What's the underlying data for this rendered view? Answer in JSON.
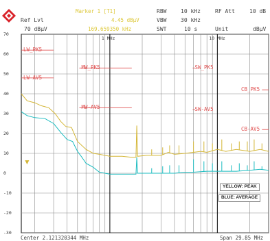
{
  "header": {
    "ref_lvl_label": "Ref Lvl",
    "ref_lvl_value": "70 dBµV",
    "marker_label": "Marker 1 [T1]",
    "marker_value": "4.45 dBµV",
    "marker_freq": "169.659350 kHz",
    "rbw_label": "RBW",
    "rbw_value": "10 kHz",
    "vbw_label": "VBW",
    "vbw_value": "30 kHz",
    "swt_label": "SWT",
    "swt_value": "10 s",
    "rf_att_label": "RF Att",
    "rf_att_value": "10 dB",
    "unit_label": "Unit",
    "unit_value": "dBµV"
  },
  "footer": {
    "center": "Center 2.121320344 MHz",
    "span": "Span 29.85 MHz"
  },
  "colors": {
    "peak_trace": "#d4b636",
    "average_trace": "#1dbcc0",
    "limit_line": "#e05252",
    "grid": "#8a8a8a"
  },
  "chart_data": {
    "type": "line",
    "x_scale": "log",
    "xlabel": "",
    "ylabel": "",
    "ylim": [
      -30,
      70
    ],
    "xlim_mhz": [
      0.15,
      30
    ],
    "y_ticks": [
      70,
      60,
      50,
      40,
      30,
      20,
      10,
      0,
      -10,
      -20,
      -30
    ],
    "x_tick_labels": [
      {
        "mhz": 1,
        "label": "1 MHz"
      },
      {
        "mhz": 10,
        "label": "10 MHz"
      }
    ],
    "grid": true,
    "legend": {
      "placement": "bottom-right",
      "entries": [
        "YELLOW: PEAK",
        "BLUE: AVERAGE"
      ]
    },
    "limit_lines": [
      {
        "name": "LW_PK5",
        "x_range_mhz": [
          0.15,
          0.3
        ],
        "value": 62
      },
      {
        "name": "LW-AV5",
        "x_range_mhz": [
          0.15,
          0.3
        ],
        "value": 48
      },
      {
        "name": "MW_PK5",
        "x_range_mhz": [
          0.52,
          1.6
        ],
        "value": 53
      },
      {
        "name": "MW-AV5",
        "x_range_mhz": [
          0.52,
          1.6
        ],
        "value": 33
      },
      {
        "name": "SW_PK5",
        "x_range_mhz": [
          5.9,
          6.2
        ],
        "value": 53
      },
      {
        "name": "SW-AV5",
        "x_range_mhz": [
          5.9,
          6.2
        ],
        "value": 32
      },
      {
        "name": "CB_PK5",
        "x_range_mhz": [
          26,
          30
        ],
        "value": 42
      },
      {
        "name": "CB-AV5",
        "x_range_mhz": [
          26,
          30
        ],
        "value": 22
      }
    ],
    "series": [
      {
        "name": "YELLOW: PEAK",
        "points": [
          [
            0.15,
            40
          ],
          [
            0.17,
            36.5
          ],
          [
            0.2,
            35.5
          ],
          [
            0.23,
            34
          ],
          [
            0.27,
            33
          ],
          [
            0.31,
            30
          ],
          [
            0.35,
            26
          ],
          [
            0.39,
            23.5
          ],
          [
            0.44,
            23
          ],
          [
            0.5,
            16
          ],
          [
            0.6,
            12
          ],
          [
            0.7,
            10
          ],
          [
            0.8,
            9.5
          ],
          [
            1.0,
            8.5
          ],
          [
            1.3,
            8.5
          ],
          [
            1.6,
            8
          ],
          [
            1.75,
            8
          ],
          [
            1.78,
            24
          ],
          [
            1.81,
            8.5
          ],
          [
            2.2,
            9
          ],
          [
            3.0,
            9
          ],
          [
            3.5,
            10.5
          ],
          [
            4.0,
            9.5
          ],
          [
            5.0,
            10
          ],
          [
            6.0,
            10.5
          ],
          [
            7.0,
            11
          ],
          [
            8.0,
            10.5
          ],
          [
            10,
            12
          ],
          [
            12,
            11
          ],
          [
            15,
            12
          ],
          [
            20,
            11
          ],
          [
            25,
            12
          ],
          [
            30,
            11
          ]
        ]
      },
      {
        "name": "BLUE: AVERAGE",
        "points": [
          [
            0.15,
            31
          ],
          [
            0.17,
            29
          ],
          [
            0.2,
            28
          ],
          [
            0.25,
            27.5
          ],
          [
            0.3,
            25
          ],
          [
            0.35,
            20.5
          ],
          [
            0.4,
            17
          ],
          [
            0.45,
            16
          ],
          [
            0.5,
            11
          ],
          [
            0.55,
            8
          ],
          [
            0.6,
            5
          ],
          [
            0.7,
            3
          ],
          [
            0.8,
            0.5
          ],
          [
            0.9,
            0
          ],
          [
            1.0,
            -0.5
          ],
          [
            1.3,
            -0.5
          ],
          [
            1.6,
            -0.5
          ],
          [
            1.75,
            -0.5
          ],
          [
            1.78,
            8
          ],
          [
            1.81,
            0
          ],
          [
            2.5,
            0
          ],
          [
            4.0,
            0
          ],
          [
            5.0,
            0.5
          ],
          [
            6.0,
            0.5
          ],
          [
            8.0,
            1
          ],
          [
            10,
            1
          ],
          [
            15,
            1
          ],
          [
            20,
            1.5
          ],
          [
            25,
            2
          ],
          [
            30,
            1.5
          ]
        ]
      }
    ],
    "spikes": [
      {
        "series": "peak",
        "peaks": [
          [
            1.78,
            24
          ],
          [
            2.45,
            12
          ],
          [
            3.1,
            13
          ],
          [
            3.6,
            14
          ],
          [
            4.4,
            14
          ],
          [
            6.0,
            16
          ],
          [
            7.5,
            16
          ],
          [
            9.0,
            15
          ],
          [
            11,
            17
          ],
          [
            13.5,
            15
          ],
          [
            16,
            16
          ],
          [
            19,
            16
          ],
          [
            22,
            17
          ],
          [
            26,
            15
          ]
        ]
      },
      {
        "series": "average",
        "peaks": [
          [
            1.78,
            8
          ],
          [
            2.45,
            2.5
          ],
          [
            3.1,
            3.5
          ],
          [
            3.6,
            4
          ],
          [
            4.4,
            4
          ],
          [
            6.0,
            7
          ],
          [
            7.5,
            6
          ],
          [
            9.0,
            5
          ],
          [
            11,
            6
          ],
          [
            13.5,
            4
          ],
          [
            16,
            5
          ],
          [
            19,
            4
          ],
          [
            22,
            6
          ],
          [
            26,
            3.5
          ]
        ]
      }
    ],
    "marker": {
      "name": "1",
      "x_mhz": 0.1697,
      "y": 4.45
    }
  }
}
